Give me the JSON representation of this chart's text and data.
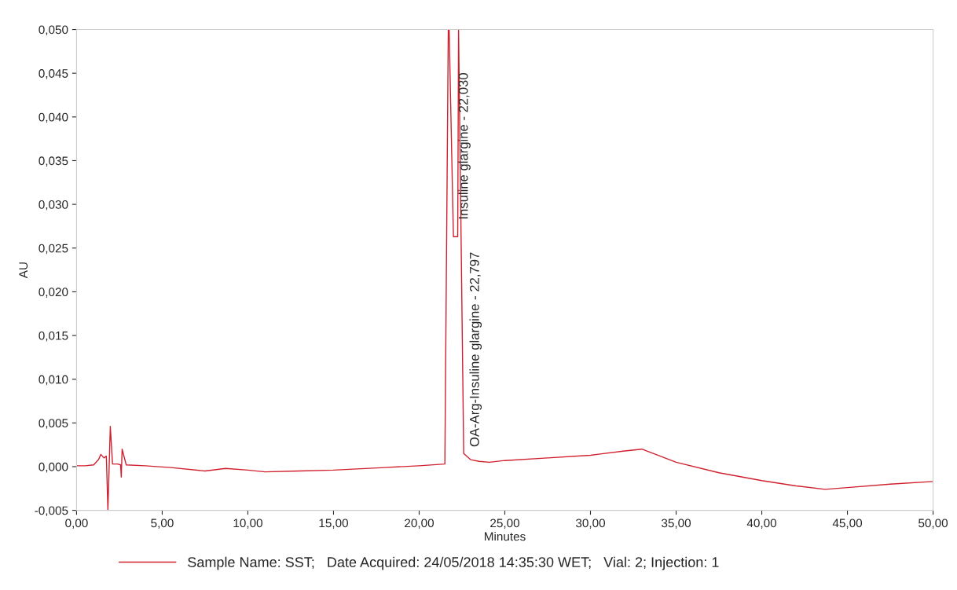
{
  "chart_data": {
    "type": "line",
    "xlabel": "Minutes",
    "ylabel": "AU",
    "series": [
      {
        "name": "Sample Name: SST;   Date Acquired: 24/05/2018 14:35:30 WET;   Vial: 2; Injection: 1",
        "color": "#d0202e",
        "x": [
          0.0,
          0.5,
          1.0,
          1.28,
          1.42,
          1.6,
          1.74,
          1.83,
          1.97,
          2.1,
          2.4,
          2.57,
          2.61,
          2.66,
          2.9,
          4.0,
          5.5,
          7.5,
          8.7,
          10.0,
          11.0,
          13.0,
          15.0,
          18.0,
          20.0,
          21.5,
          21.7,
          21.75,
          22.0,
          22.25,
          22.3,
          22.6,
          23.0,
          23.5,
          24.1,
          25.0,
          27.5,
          30.0,
          32.0,
          33.0,
          35.0,
          37.5,
          40.0,
          42.0,
          43.7,
          45.0,
          47.5,
          50.0
        ],
        "values": [
          0.0001,
          0.0001,
          0.0002,
          0.0008,
          0.0014,
          0.001,
          0.0012,
          -0.005,
          0.0046,
          0.0003,
          0.0003,
          0.0002,
          -0.0012,
          0.002,
          0.0002,
          0.0001,
          -0.0001,
          -0.0005,
          -0.0002,
          -0.0004,
          -0.0006,
          -0.0005,
          -0.0004,
          -0.0001,
          0.0001,
          0.0003,
          0.05,
          0.05,
          0.0263,
          0.0263,
          0.05,
          0.0015,
          0.0008,
          0.0006,
          0.0005,
          0.0007,
          0.001,
          0.0013,
          0.0018,
          0.002,
          0.0005,
          -0.0007,
          -0.0016,
          -0.0022,
          -0.0026,
          -0.0024,
          -0.002,
          -0.0017
        ]
      }
    ],
    "xlim": [
      0,
      50
    ],
    "ylim": [
      -0.005,
      0.05
    ],
    "xticks": [
      {
        "value": 0,
        "label": "0,00"
      },
      {
        "value": 5,
        "label": "5,00"
      },
      {
        "value": 10,
        "label": "10,00"
      },
      {
        "value": 15,
        "label": "15,00"
      },
      {
        "value": 20,
        "label": "20,00"
      },
      {
        "value": 25,
        "label": "25,00"
      },
      {
        "value": 30,
        "label": "30,00"
      },
      {
        "value": 35,
        "label": "35,00"
      },
      {
        "value": 40,
        "label": "40,00"
      },
      {
        "value": 45,
        "label": "45,00"
      },
      {
        "value": 50,
        "label": "50,00"
      }
    ],
    "yticks": [
      {
        "value": -0.005,
        "label": "-0,005"
      },
      {
        "value": 0,
        "label": "0,000"
      },
      {
        "value": 0.005,
        "label": "0,005"
      },
      {
        "value": 0.01,
        "label": "0,010"
      },
      {
        "value": 0.015,
        "label": "0,015"
      },
      {
        "value": 0.02,
        "label": "0,020"
      },
      {
        "value": 0.025,
        "label": "0,025"
      },
      {
        "value": 0.03,
        "label": "0,030"
      },
      {
        "value": 0.035,
        "label": "0,035"
      },
      {
        "value": 0.04,
        "label": "0,040"
      },
      {
        "value": 0.045,
        "label": "0,045"
      },
      {
        "value": 0.05,
        "label": "0,050"
      }
    ],
    "annotations": [
      {
        "text": "Insuline glargine - 22,030",
        "x": 22.03,
        "y": 0.028
      },
      {
        "text": "OA-Arg-Insuline glargine - 22,797",
        "x": 22.3,
        "y": 0.0263
      }
    ],
    "grid": false,
    "legend": "bottom",
    "marker": "none",
    "line_style": "solid"
  }
}
